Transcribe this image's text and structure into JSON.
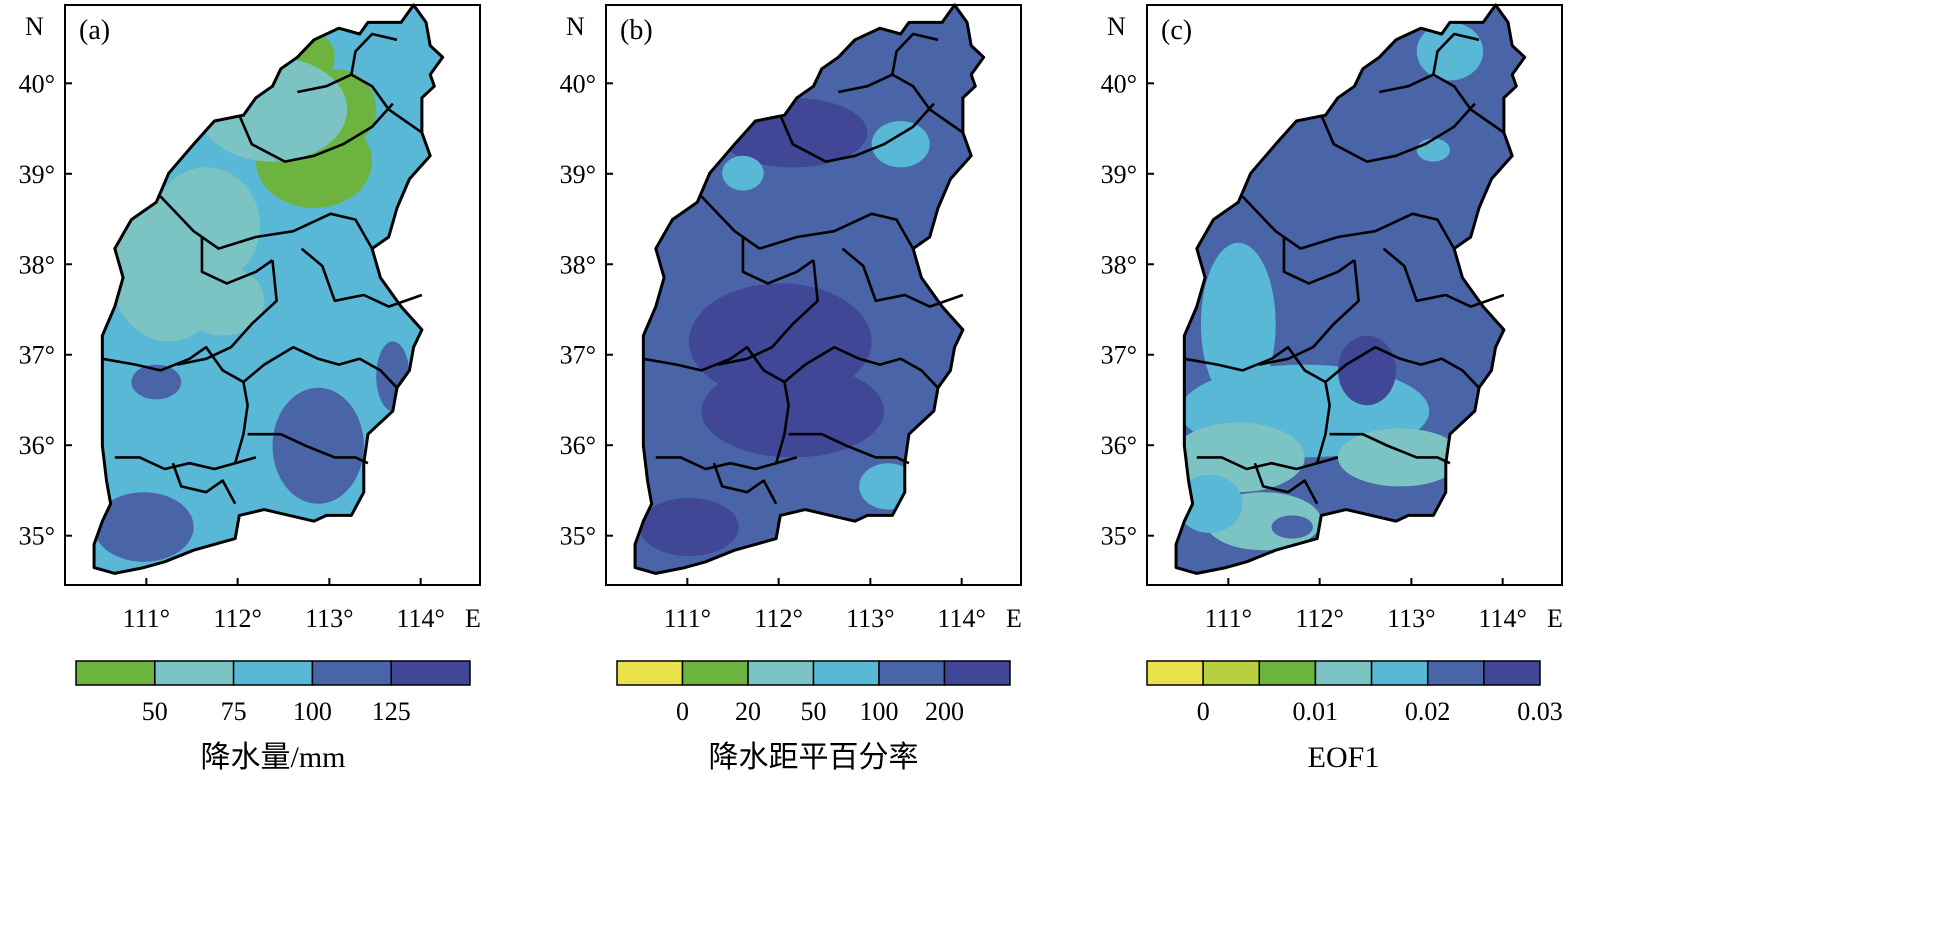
{
  "panels": [
    {
      "label": "(a)",
      "north_label": "N",
      "east_label": "E",
      "lat_ticks": [
        "40°",
        "39°",
        "38°",
        "37°",
        "36°",
        "35°"
      ],
      "lon_ticks": [
        "111°",
        "112°",
        "113°",
        "114°"
      ],
      "palette": [
        "#6db33f",
        "#7cc4c4",
        "#58b8d6",
        "#4a64a8",
        "#3f4796"
      ],
      "base_fill": 2,
      "blobs": [
        [
          0,
          0.57,
          0.09,
          0.08,
          0.05
        ],
        [
          0,
          0.65,
          0.18,
          0.1,
          0.07
        ],
        [
          0,
          0.6,
          0.27,
          0.14,
          0.08
        ],
        [
          0,
          0.32,
          0.36,
          0.09,
          0.05
        ],
        [
          1,
          0.5,
          0.18,
          0.18,
          0.09
        ],
        [
          1,
          0.34,
          0.38,
          0.13,
          0.1
        ],
        [
          1,
          0.25,
          0.46,
          0.14,
          0.12
        ],
        [
          1,
          0.38,
          0.51,
          0.1,
          0.06
        ],
        [
          3,
          0.61,
          0.76,
          0.11,
          0.1
        ],
        [
          3,
          0.19,
          0.9,
          0.12,
          0.06
        ],
        [
          3,
          0.22,
          0.65,
          0.06,
          0.03
        ],
        [
          3,
          0.79,
          0.64,
          0.04,
          0.06
        ]
      ],
      "colorbar": {
        "colors": [
          "#6db33f",
          "#7cc4c4",
          "#58b8d6",
          "#4a64a8",
          "#3f4796"
        ],
        "ticks": [
          "50",
          "75",
          "100",
          "125"
        ],
        "title": "降水量/mm"
      }
    },
    {
      "label": "(b)",
      "north_label": "N",
      "east_label": "E",
      "lat_ticks": [
        "40°",
        "39°",
        "38°",
        "37°",
        "36°",
        "35°"
      ],
      "lon_ticks": [
        "111°",
        "112°",
        "113°",
        "114°"
      ],
      "palette": [
        "#e9e24b",
        "#6db33f",
        "#7cc4c4",
        "#58b8d6",
        "#4a64a8",
        "#3f4796"
      ],
      "base_fill": 4,
      "blobs": [
        [
          5,
          0.45,
          0.22,
          0.18,
          0.06
        ],
        [
          5,
          0.42,
          0.58,
          0.22,
          0.1
        ],
        [
          5,
          0.45,
          0.7,
          0.22,
          0.08
        ],
        [
          5,
          0.2,
          0.9,
          0.12,
          0.05
        ],
        [
          3,
          0.33,
          0.29,
          0.05,
          0.03
        ],
        [
          3,
          0.71,
          0.24,
          0.07,
          0.04
        ],
        [
          3,
          0.68,
          0.83,
          0.07,
          0.04
        ]
      ],
      "colorbar": {
        "colors": [
          "#e9e24b",
          "#6db33f",
          "#7cc4c4",
          "#58b8d6",
          "#4a64a8",
          "#3f4796"
        ],
        "ticks": [
          "0",
          "20",
          "50",
          "100",
          "200"
        ],
        "title": "降水距平百分率"
      }
    },
    {
      "label": "(c)",
      "north_label": "N",
      "east_label": "E",
      "lat_ticks": [
        "40°",
        "39°",
        "38°",
        "37°",
        "36°",
        "35°"
      ],
      "lon_ticks": [
        "111°",
        "112°",
        "113°",
        "114°"
      ],
      "palette": [
        "#e9e24b",
        "#b8cf3f",
        "#6db33f",
        "#7cc4c4",
        "#58b8d6",
        "#4a64a8",
        "#3f4796"
      ],
      "base_fill": 5,
      "blobs": [
        [
          4,
          0.73,
          0.08,
          0.08,
          0.05
        ],
        [
          4,
          0.69,
          0.25,
          0.04,
          0.02
        ],
        [
          4,
          0.22,
          0.55,
          0.09,
          0.14
        ],
        [
          4,
          0.38,
          0.7,
          0.3,
          0.08
        ],
        [
          3,
          0.22,
          0.78,
          0.16,
          0.06
        ],
        [
          3,
          0.61,
          0.78,
          0.15,
          0.05
        ],
        [
          3,
          0.28,
          0.89,
          0.14,
          0.05
        ],
        [
          4,
          0.15,
          0.86,
          0.08,
          0.05
        ],
        [
          6,
          0.53,
          0.63,
          0.07,
          0.06
        ],
        [
          5,
          0.35,
          0.9,
          0.05,
          0.02
        ]
      ],
      "colorbar": {
        "colors": [
          "#e9e24b",
          "#b8cf3f",
          "#6db33f",
          "#7cc4c4",
          "#58b8d6",
          "#4a64a8",
          "#3f4796"
        ],
        "ticks": [
          "0",
          "0.01",
          "0.02",
          "0.03"
        ],
        "title": "EOF1"
      }
    }
  ]
}
